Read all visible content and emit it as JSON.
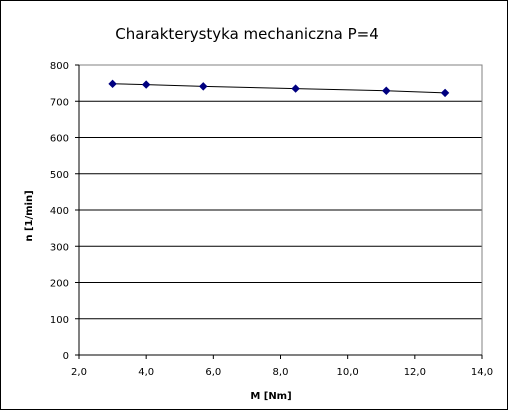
{
  "chart_data": {
    "type": "scatter",
    "title": "Charakterystyka  mechaniczna P=4",
    "xlabel": "M  [Nm]",
    "ylabel": "n  [1/min]",
    "xlim": [
      2.0,
      14.0
    ],
    "ylim": [
      0,
      800
    ],
    "x_ticks": [
      "2,0",
      "4,0",
      "6,0",
      "8,0",
      "10,0",
      "12,0",
      "14,0"
    ],
    "y_ticks": [
      "0",
      "100",
      "200",
      "300",
      "400",
      "500",
      "600",
      "700",
      "800"
    ],
    "grid": "horizontal",
    "legend": "none",
    "marker": "diamond",
    "connected": true,
    "colors": {
      "marker": "#000080",
      "line": "#000000",
      "plot_background": "#ffffff"
    },
    "series": [
      {
        "x": [
          3.0,
          4.0,
          5.7,
          8.45,
          11.15,
          12.9
        ],
        "y": [
          748,
          746,
          741,
          735,
          729,
          723
        ]
      }
    ]
  }
}
